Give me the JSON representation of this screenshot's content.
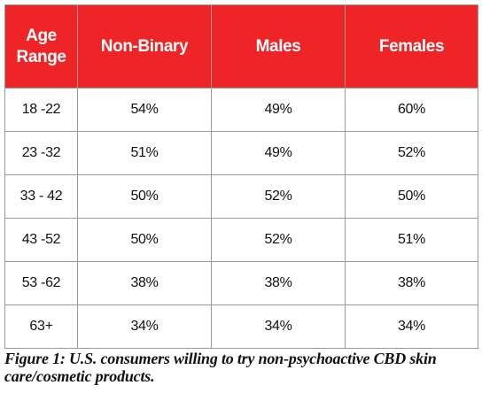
{
  "chart_data": {
    "type": "table",
    "title": "Figure 1: U.S. consumers willing to try non-psychoactive CBD skin care/cosmetic products.",
    "header": {
      "age_range": "Age Range",
      "columns": [
        "Non-Binary",
        "Males",
        "Females"
      ]
    },
    "rows": [
      {
        "age": "18 -22",
        "values": [
          "54%",
          "49%",
          "60%"
        ]
      },
      {
        "age": "23 -32",
        "values": [
          "51%",
          "49%",
          "52%"
        ]
      },
      {
        "age": "33 - 42",
        "values": [
          "50%",
          "52%",
          "50%"
        ]
      },
      {
        "age": "43 -52",
        "values": [
          "50%",
          "52%",
          "51%"
        ]
      },
      {
        "age": "53 -62",
        "values": [
          "38%",
          "38%",
          "38%"
        ]
      },
      {
        "age": "63+",
        "values": [
          "34%",
          "34%",
          "34%"
        ]
      }
    ]
  },
  "colors": {
    "header_background": "#ef2427",
    "header_text": "#ffffff",
    "border": "#9a9a9a"
  }
}
